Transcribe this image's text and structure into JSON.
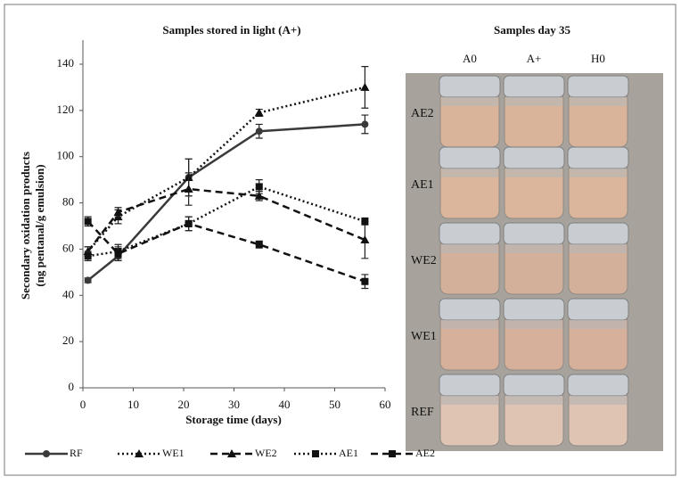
{
  "chart_data": {
    "type": "line",
    "title": "Samples stored in light (A+)",
    "x_label": "Storage time (days)",
    "y_label": [
      "Secondary oxidation products",
      "(ng pentanal/g emulsion)"
    ],
    "x": [
      1,
      7,
      21,
      35,
      56
    ],
    "xlim": [
      0,
      60
    ],
    "xticks": [
      0,
      10,
      20,
      30,
      40,
      50,
      60
    ],
    "ylim": [
      0,
      140
    ],
    "yticks": [
      0,
      20,
      40,
      60,
      80,
      100,
      120,
      140
    ],
    "grid": false,
    "legend": "bottom",
    "series": [
      {
        "name": "RF",
        "color": "#3a3a3a",
        "style": "solid",
        "marker": "circle",
        "values": [
          46.5,
          57,
          91,
          111,
          114
        ],
        "errors": [
          1,
          2,
          8,
          3,
          4
        ]
      },
      {
        "name": "WE1",
        "color": "#111111",
        "style": "dotted",
        "marker": "triangle",
        "values": [
          59,
          74,
          91,
          119,
          130
        ],
        "errors": [
          2,
          3,
          8,
          1.5,
          9
        ]
      },
      {
        "name": "WE2",
        "color": "#111111",
        "style": "dashed",
        "marker": "triangle",
        "values": [
          59,
          76,
          86,
          83,
          64
        ],
        "errors": [
          2,
          2,
          7,
          2,
          8
        ]
      },
      {
        "name": "AE1",
        "color": "#111111",
        "style": "dotted",
        "marker": "square",
        "values": [
          57,
          59,
          71,
          87,
          72
        ],
        "errors": [
          2,
          3,
          3,
          3,
          1.5
        ]
      },
      {
        "name": "AE2",
        "color": "#111111",
        "style": "dashed",
        "marker": "square",
        "values": [
          72,
          58,
          71,
          62,
          46
        ],
        "errors": [
          2,
          3,
          3,
          1.5,
          3
        ]
      }
    ]
  },
  "photo_panel": {
    "title": "Samples day 35",
    "columns": [
      "A0",
      "A+",
      "H0"
    ],
    "rows": [
      "AE2",
      "AE1",
      "WE2",
      "WE1",
      "REF"
    ]
  }
}
